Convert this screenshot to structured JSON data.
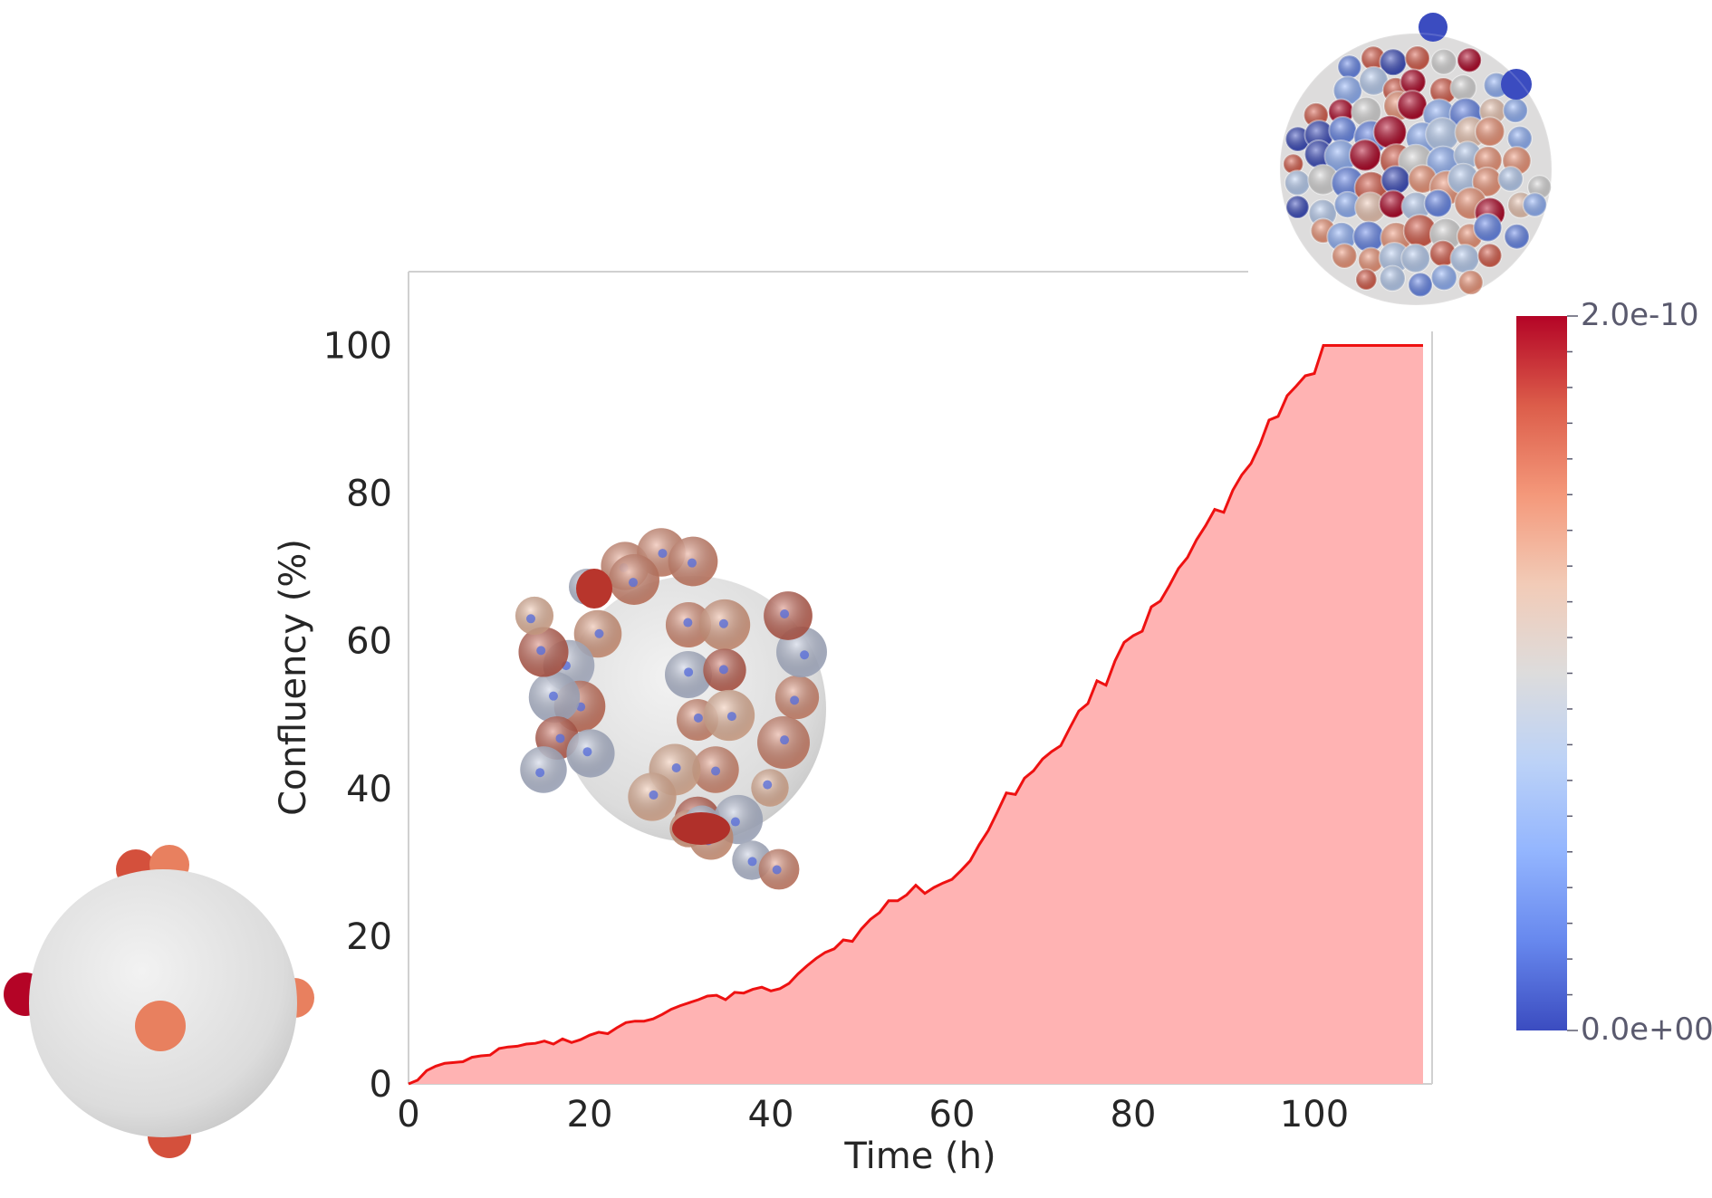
{
  "chart_data": {
    "type": "area",
    "title": "",
    "xlabel": "Time (h)",
    "ylabel": "Confluency (%)",
    "xlim": [
      0,
      113
    ],
    "ylim": [
      0,
      110
    ],
    "xticks": [
      0,
      20,
      40,
      60,
      80,
      100
    ],
    "yticks": [
      0,
      20,
      40,
      60,
      80,
      100
    ],
    "grid": false,
    "fill_color": "#ffb3b3",
    "line_color": "#ee1111",
    "series": [
      {
        "x": [
          0,
          1,
          2,
          3,
          4,
          5,
          6,
          7,
          8,
          9,
          10,
          11,
          12,
          13,
          14,
          15,
          16,
          17,
          18,
          19,
          20,
          21,
          22,
          23,
          24,
          25,
          26,
          27,
          28,
          29,
          30,
          31,
          32,
          33,
          34,
          35,
          36,
          37,
          38,
          39,
          40,
          41,
          42,
          43,
          44,
          45,
          46,
          47,
          48,
          49,
          50,
          51,
          52,
          53,
          54,
          55,
          56,
          57,
          58,
          59,
          60,
          61,
          62,
          63,
          64,
          65,
          66,
          67,
          68,
          69,
          70,
          71,
          72,
          73,
          74,
          75,
          76,
          77,
          78,
          79,
          80,
          81,
          82,
          83,
          84,
          85,
          86,
          87,
          88,
          89,
          90,
          91,
          92,
          93,
          94,
          95,
          96,
          97,
          98,
          99,
          100,
          101,
          102,
          103,
          104,
          105,
          106,
          107,
          108,
          109,
          110,
          111,
          112
        ],
        "values": [
          0,
          0.5,
          1.8,
          2.4,
          2.8,
          2.9,
          3.0,
          3.6,
          3.8,
          3.9,
          4.8,
          5.0,
          5.1,
          5.4,
          5.5,
          5.8,
          5.4,
          6.1,
          5.6,
          6.0,
          6.6,
          7.0,
          6.8,
          7.6,
          8.3,
          8.5,
          8.5,
          8.8,
          9.4,
          10.1,
          10.6,
          11.0,
          11.4,
          11.9,
          12.0,
          11.4,
          12.4,
          12.3,
          12.8,
          13.1,
          12.6,
          12.9,
          13.6,
          14.9,
          16.0,
          17.0,
          17.8,
          18.3,
          19.5,
          19.3,
          21.0,
          22.3,
          23.2,
          24.8,
          24.8,
          25.6,
          26.9,
          25.8,
          26.6,
          27.2,
          27.7,
          28.9,
          30.2,
          32.4,
          34.3,
          36.8,
          39.4,
          39.2,
          41.4,
          42.4,
          44.0,
          45.0,
          45.8,
          48.2,
          50.5,
          51.5,
          54.6,
          54.0,
          57.3,
          59.8,
          60.7,
          61.3,
          64.6,
          65.4,
          67.5,
          69.8,
          71.3,
          73.7,
          75.6,
          77.8,
          77.4,
          80.4,
          82.5,
          84.0,
          86.6,
          89.9,
          90.4,
          93.2,
          94.5,
          95.9,
          96.2,
          100,
          100,
          100,
          100,
          100,
          100,
          100,
          100,
          100,
          100,
          100,
          100
        ]
      }
    ]
  },
  "colorbar": {
    "max_label": "2.0e-10",
    "min_label": "0.0e+00",
    "colors": [
      "#b40426",
      "#dc5d4a",
      "#f4987a",
      "#f2cbb7",
      "#dddcdc",
      "#bcd2f7",
      "#93b5fe",
      "#6788ee",
      "#3b4cc0"
    ]
  }
}
